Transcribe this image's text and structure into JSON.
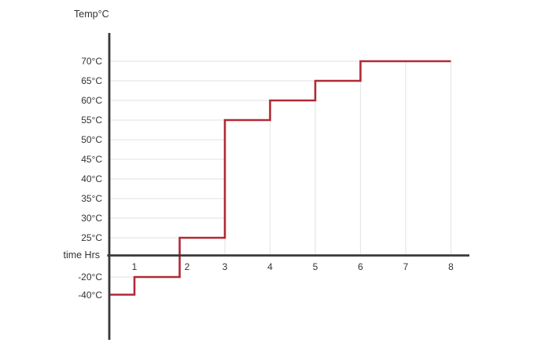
{
  "chart_data": {
    "type": "line",
    "line_style": "step",
    "title": "",
    "y_axis_label": "Temp°C",
    "x_axis_label": "time Hrs",
    "x_ticks": [
      "1",
      "2",
      "3",
      "4",
      "5",
      "6",
      "7",
      "8"
    ],
    "y_ticks": [
      "70°C",
      "65°C",
      "60°C",
      "55°C",
      "50°C",
      "45°C",
      "40°C",
      "35°C",
      "30°C",
      "25°C",
      "-20°C",
      "-40°C"
    ],
    "y_tick_values": [
      70,
      65,
      60,
      55,
      50,
      45,
      40,
      35,
      30,
      25,
      -20,
      -40
    ],
    "x_range_hours": [
      0.43,
      8
    ],
    "series": [
      {
        "name": "temperature",
        "color": "#B02A34",
        "start": [
          0.43,
          -40
        ],
        "steps_time_to_temp": [
          [
            1,
            -20
          ],
          [
            2,
            25
          ],
          [
            3,
            55
          ],
          [
            4,
            60
          ],
          [
            5,
            65
          ],
          [
            6,
            70
          ]
        ],
        "end_time": 8,
        "points": [
          [
            0.43,
            -40
          ],
          [
            1,
            -40
          ],
          [
            1,
            -20
          ],
          [
            2,
            -20
          ],
          [
            2,
            25
          ],
          [
            3,
            25
          ],
          [
            3,
            55
          ],
          [
            4,
            55
          ],
          [
            4,
            60
          ],
          [
            5,
            60
          ],
          [
            5,
            65
          ],
          [
            6,
            65
          ],
          [
            6,
            70
          ],
          [
            8,
            70
          ]
        ]
      }
    ],
    "grid": true,
    "legend_position": "none",
    "colors": {
      "axis": "#383838",
      "grid": "#E8E8E8",
      "text": "#333333",
      "line": "#B02A34"
    },
    "y_scale_note": "tick rows evenly spaced; scale is schematic (not linear across 25 to -20)"
  }
}
